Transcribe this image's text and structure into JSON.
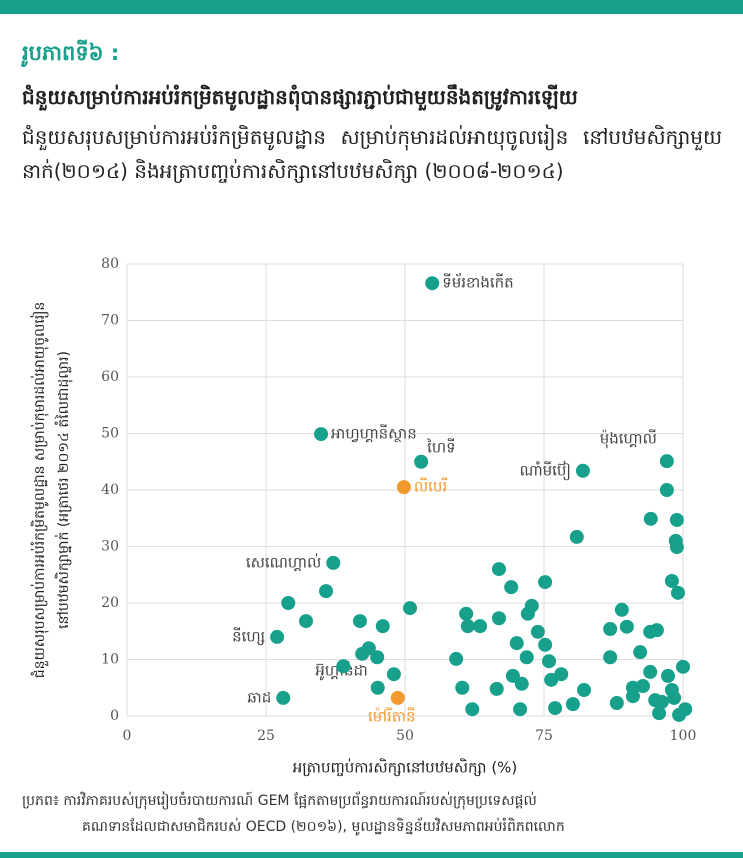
{
  "header": {
    "figure_label": "រូបភាពទី៦ :",
    "title": "ជំនួយសម្រាប់ការអប់រំកម្រិតមូលដ្ឋានពុំបានផ្សារភ្ជាប់ជាមួយនឹងតម្រូវការឡើយ",
    "subtitle": "ជំនួយសរុបសម្រាប់ការអប់រំកម្រិតមូលដ្ឋាន សម្រាប់កុមារដល់អាយុចូលរៀន នៅបឋមសិក្សាមួយនាក់(២០១៤) និងអត្រាបញ្ចប់ការសិក្សានៅបឋមសិក្សា (២០០៨-២០១៤)"
  },
  "chart_data": {
    "type": "scatter",
    "xlabel": "អត្រាបញ្ចប់ការសិក្សានៅបឋមសិក្សា (%)",
    "ylabel": [
      "ជំនួយសរុបសម្រាប់ការអប់រំកម្រិតមូលដ្ឋាន សម្រាប់កុមារដល់អាយុចូលរៀន",
      "នៅបឋមសិក្សាម្នាក់ (អត្រាថេរ ២០១៤ តំលៃជាដុល្លារ)"
    ],
    "xlim": [
      0,
      100
    ],
    "xticks": [
      0,
      25,
      50,
      75,
      100
    ],
    "ylim": [
      0,
      80
    ],
    "yticks": [
      0,
      10,
      20,
      30,
      40,
      50,
      60,
      70,
      80
    ],
    "grid": true,
    "series": [
      {
        "color": "#17a08c",
        "x": [
          54.9,
          34.9,
          52.9,
          82.0,
          97.1,
          37.1,
          27.0,
          28.1,
          45.1,
          29.0,
          32.2,
          35.8,
          38.9,
          41.9,
          42.3,
          43.5,
          45.0,
          46.0,
          48.0,
          50.9,
          59.2,
          60.3,
          61.0,
          61.3,
          62.1,
          63.5,
          66.5,
          66.9,
          66.9,
          69.1,
          69.4,
          70.1,
          70.7,
          71.0,
          71.9,
          72.1,
          72.8,
          73.9,
          75.2,
          75.2,
          75.9,
          76.3,
          77.0,
          78.1,
          80.2,
          80.9,
          82.2,
          86.9,
          86.9,
          88.1,
          89.0,
          89.9,
          91.0,
          91.0,
          92.3,
          92.8,
          94.1,
          94.1,
          94.2,
          95.0,
          95.3,
          95.7,
          96.2,
          97.1,
          97.3,
          98.0,
          98.0,
          98.4,
          98.7,
          98.9,
          98.9,
          99.1,
          99.3,
          100.0,
          100.4
        ],
        "values": [
          76.6,
          49.9,
          45.0,
          43.4,
          45.1,
          27.1,
          14.0,
          3.2,
          5.0,
          20.0,
          16.8,
          22.1,
          8.8,
          16.8,
          11.0,
          12.0,
          10.4,
          15.9,
          7.4,
          19.1,
          10.1,
          5.0,
          18.1,
          15.9,
          1.2,
          15.9,
          4.8,
          26.0,
          17.3,
          22.8,
          7.1,
          12.9,
          1.2,
          5.7,
          10.4,
          18.1,
          19.5,
          14.9,
          23.7,
          12.6,
          9.7,
          6.4,
          1.4,
          7.4,
          2.1,
          31.7,
          4.6,
          15.4,
          10.4,
          2.3,
          18.8,
          15.8,
          3.5,
          5.0,
          11.3,
          5.3,
          7.8,
          14.9,
          34.9,
          2.8,
          15.2,
          0.5,
          2.5,
          40.0,
          7.1,
          23.9,
          4.6,
          3.2,
          31.0,
          29.9,
          34.7,
          21.8,
          0.2,
          8.7,
          1.2
        ],
        "labels": [
          "ទីម័រខាងកើត",
          "អាហ្វហ្គានីស្ថាន",
          "ហៃទី",
          "ណាំមីប៊ៀ",
          "ម៉ុងហ្គោលី",
          "សេណេហ្គាល់",
          "នីហ្សេ",
          "ឆាដ",
          "អ៊ូហ្គាន់ដា",
          null,
          null,
          null,
          null,
          null,
          null,
          null,
          null,
          null,
          null,
          null,
          null,
          null,
          null,
          null,
          null,
          null,
          null,
          null,
          null,
          null,
          null,
          null,
          null,
          null,
          null,
          null,
          null,
          null,
          null,
          null,
          null,
          null,
          null,
          null,
          null,
          null,
          null,
          null,
          null,
          null,
          null,
          null,
          null,
          null,
          null,
          null,
          null,
          null,
          null,
          null,
          null,
          null,
          null,
          null,
          null,
          null,
          null,
          null,
          null,
          null,
          null,
          null,
          null,
          null,
          null
        ]
      },
      {
        "color": "#f39a2e",
        "x": [
          49.8,
          48.7
        ],
        "values": [
          40.5,
          3.2
        ],
        "labels": [
          "លីបេរី",
          "ម៉ៅរីតានី"
        ]
      }
    ]
  },
  "source": [
    "ប្រភព៖ ការវិភាគរបស់ក្រុមរៀបចំរបាយការណ៍ GEM ផ្អែកតាមប្រព័ន្ធរាយការណ៍របស់ក្រុមប្រទេសផ្តល់",
    "គណទានដែលជាសមាជិករបស់ OECD (២០១៦), មូលដ្ឋានទិន្នន័យវិសមភាពអប់រំពិភពលោក"
  ]
}
